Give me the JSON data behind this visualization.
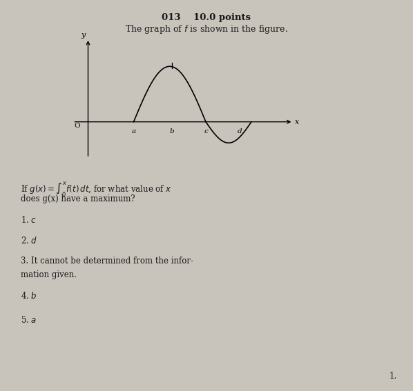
{
  "title_line": "013    10.0 points",
  "subtitle": "The graph of f is shown in the figure.",
  "question_line1": "If g(x) = ∫₀ˣ f(t) dt, for what value of x",
  "question_line2": "does g(x) have a maximum?",
  "choices": [
    "1. c",
    "2. d",
    "3. It cannot be determined from the infor-",
    "mation given.",
    "4. b",
    "5. a"
  ],
  "background_color": "#c8c4bc",
  "graph_bg": "#dedad2",
  "text_color": "#1a1a1a",
  "page_number": "1.",
  "graph_x_labels": [
    "O",
    "a",
    "b",
    "c",
    "d"
  ],
  "curve_color": "#111111"
}
